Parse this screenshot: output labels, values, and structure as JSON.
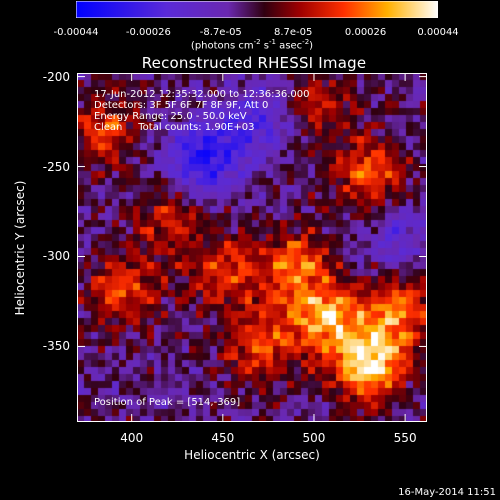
{
  "chart_data": {
    "type": "heatmap",
    "title": "Reconstructed RHESSI Image",
    "xlabel": "Heliocentric X (arcsec)",
    "ylabel": "Heliocentric Y (arcsec)",
    "xlim": [
      370,
      562
    ],
    "ylim": [
      -392,
      -198
    ],
    "x_ticks": [
      "400",
      "450",
      "500",
      "550"
    ],
    "y_ticks": [
      "-200",
      "-250",
      "-300",
      "-350"
    ],
    "colorbar": {
      "ticks": [
        "-0.00044",
        "-0.00026",
        "-8.7e-05",
        "8.7e-05",
        "0.00026",
        "0.00044"
      ],
      "range": [
        -0.00044,
        0.00044
      ],
      "units_line1": "(photons cm",
      "units_exp1": "-2",
      "units_mid": " s",
      "units_exp2": "-1",
      "units_line2": " asec",
      "units_exp3": "-2",
      "units_close": ")"
    },
    "annotations": {
      "time": "17-Jun-2012 12:35:32.000 to 12:36:36.000",
      "detectors": "Detectors: 3F 5F 6F 7F 8F 9F, Att 0",
      "energy": "Energy Range: 25.0 - 50.0 keV",
      "clean": "Clean     Total counts: 1.90E+03",
      "peak": "Position of Peak = [514,-369]"
    },
    "peak": [
      514,
      -369
    ],
    "sources": [
      {
        "x": 530,
        "y": -360,
        "value": 0.00044
      },
      {
        "x": 505,
        "y": -335,
        "value": 0.00036
      },
      {
        "x": 545,
        "y": -330,
        "value": 0.0003
      },
      {
        "x": 490,
        "y": -305,
        "value": 0.00028
      },
      {
        "x": 470,
        "y": -350,
        "value": 0.00025
      },
      {
        "x": 395,
        "y": -320,
        "value": 0.00026
      },
      {
        "x": 450,
        "y": -310,
        "value": 0.00024
      },
      {
        "x": 420,
        "y": -280,
        "value": 0.00018
      },
      {
        "x": 385,
        "y": -230,
        "value": 0.00022
      },
      {
        "x": 530,
        "y": -255,
        "value": 0.00026
      },
      {
        "x": 505,
        "y": -215,
        "value": 0.00018
      },
      {
        "x": 440,
        "y": -245,
        "value": -0.00032
      },
      {
        "x": 470,
        "y": -225,
        "value": -0.00018
      },
      {
        "x": 545,
        "y": -290,
        "value": -0.00014
      }
    ],
    "colormap": "RHESSI blue-purple-red-yellow-white"
  },
  "footer": {
    "timestamp": "16-May-2014 11:51"
  },
  "colors": {
    "background": "#000000",
    "text": "#ffffff"
  }
}
